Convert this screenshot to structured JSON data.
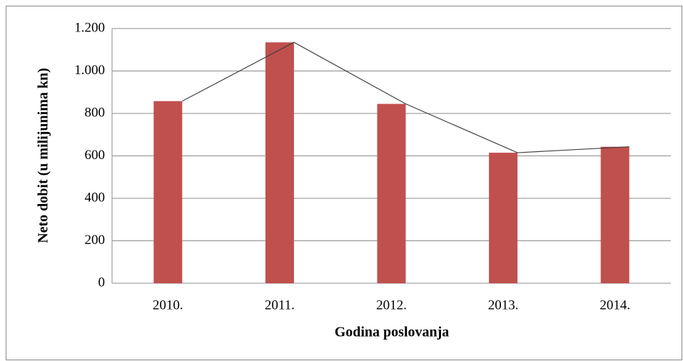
{
  "chart_data": {
    "type": "bar",
    "categories": [
      "2010.",
      "2011.",
      "2012.",
      "2013.",
      "2014."
    ],
    "values": [
      858,
      1135,
      845,
      615,
      643
    ],
    "color": "#c0504d",
    "line_overlay": true,
    "line_color": "#404040",
    "xlabel": "Godina poslovanja",
    "ylabel": "Neto dobit  (u milijunima  kn)",
    "ylim": [
      0,
      1200
    ],
    "yticks": [
      0,
      200,
      400,
      600,
      800,
      {
        "value": 1000,
        "label": "1.000"
      },
      {
        "value": 1200,
        "label": "1.200"
      }
    ],
    "grid": true
  }
}
